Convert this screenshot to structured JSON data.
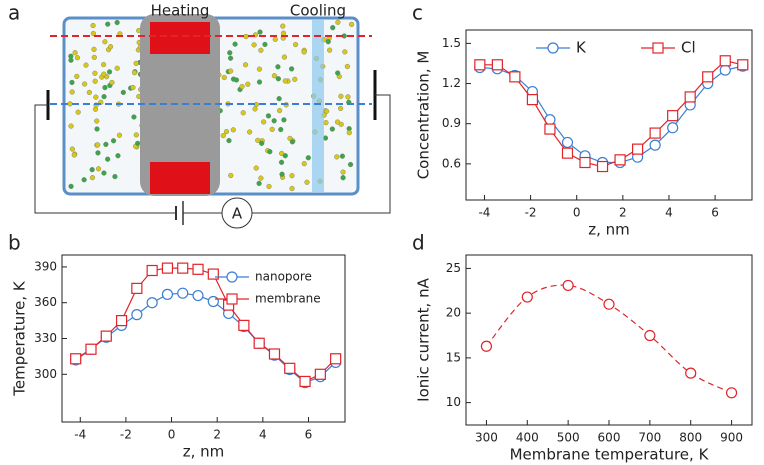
{
  "diagram": {
    "panel": "a",
    "heating": "Heating",
    "cooling": "Cooling",
    "ammeter": "A"
  },
  "chart_data": [
    {
      "type": "line",
      "panel": "b",
      "xlabel": "z, nm",
      "ylabel": "Temperature, K",
      "xlim": [
        -4.8,
        7.6
      ],
      "ylim": [
        260,
        400
      ],
      "xticks": [
        -4,
        -2,
        0,
        2,
        4,
        6
      ],
      "yticks": [
        300,
        330,
        360,
        390
      ],
      "legend": "upper right",
      "x": [
        -4.2,
        -3.53,
        -2.86,
        -2.19,
        -1.52,
        -0.85,
        -0.18,
        0.49,
        1.16,
        1.83,
        2.5,
        3.17,
        3.84,
        4.51,
        5.18,
        5.85,
        6.52,
        7.19
      ],
      "series": [
        {
          "name": "nanopore",
          "color": "#3b7fd4",
          "marker": "circle",
          "values": [
            312,
            321,
            331,
            341,
            350,
            360,
            367,
            368,
            366,
            361,
            351,
            340,
            326,
            316,
            304,
            293,
            298,
            310
          ]
        },
        {
          "name": "membrane",
          "color": "#e0242a",
          "marker": "square",
          "values": [
            313,
            321,
            332,
            345,
            372,
            387,
            389,
            389,
            388,
            384,
            358,
            341,
            326,
            317,
            305,
            294,
            300,
            313
          ]
        }
      ]
    },
    {
      "type": "line",
      "panel": "c",
      "xlabel": "z, nm",
      "ylabel": "Concentration, M",
      "xlim": [
        -4.8,
        7.6
      ],
      "ylim": [
        0.33,
        1.6
      ],
      "xticks": [
        -4,
        -2,
        0,
        2,
        4,
        6
      ],
      "yticks": [
        0.6,
        0.9,
        1.2,
        1.5
      ],
      "legend": "upper center",
      "x": [
        -4.2,
        -3.44,
        -2.68,
        -1.92,
        -1.16,
        -0.4,
        0.36,
        1.12,
        1.88,
        2.64,
        3.4,
        4.16,
        4.92,
        5.68,
        6.44,
        7.2
      ],
      "series": [
        {
          "name": "K",
          "color": "#3b7fd4",
          "marker": "circle",
          "values": [
            1.32,
            1.31,
            1.26,
            1.14,
            0.93,
            0.76,
            0.66,
            0.61,
            0.61,
            0.65,
            0.74,
            0.87,
            1.04,
            1.2,
            1.3,
            1.33
          ]
        },
        {
          "name": "Cl",
          "color": "#e0242a",
          "marker": "square",
          "values": [
            1.34,
            1.34,
            1.25,
            1.08,
            0.86,
            0.68,
            0.61,
            0.58,
            0.63,
            0.71,
            0.83,
            0.96,
            1.1,
            1.25,
            1.37,
            1.34
          ]
        }
      ]
    },
    {
      "type": "line",
      "panel": "d",
      "xlabel": "Membrane temperature, K",
      "ylabel": "Ionic current, nA",
      "xlim": [
        250,
        950
      ],
      "ylim": [
        7.5,
        26.5
      ],
      "xticks": [
        300,
        400,
        500,
        600,
        700,
        800,
        900
      ],
      "yticks": [
        10,
        15,
        20,
        25
      ],
      "x": [
        300,
        400,
        500,
        600,
        700,
        800,
        900
      ],
      "series": [
        {
          "color": "#e0242a",
          "marker": "circle",
          "linestyle": "dashed",
          "values": [
            16.3,
            21.8,
            23.1,
            21.0,
            17.5,
            13.3,
            11.1
          ]
        }
      ]
    }
  ]
}
